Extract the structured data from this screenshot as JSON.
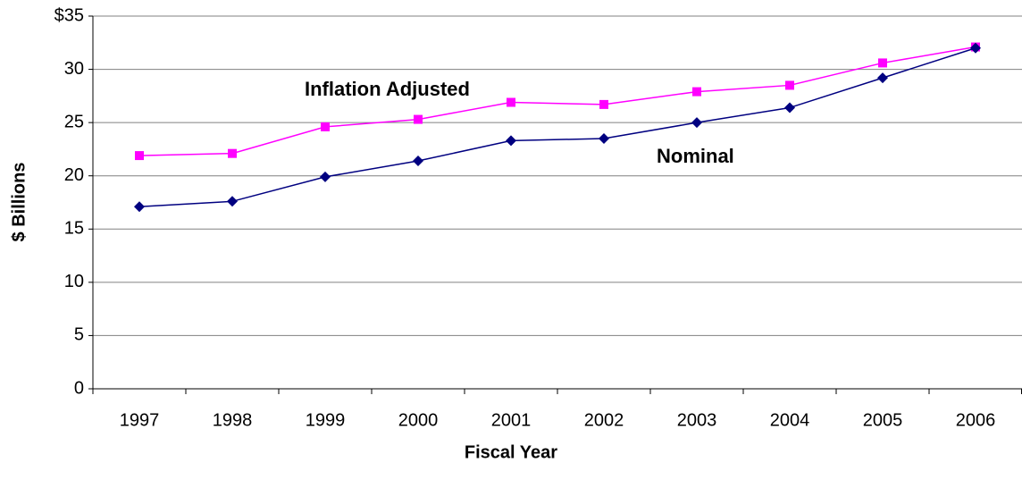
{
  "chart_data": {
    "type": "line",
    "categories": [
      "1997",
      "1998",
      "1999",
      "2000",
      "2001",
      "2002",
      "2003",
      "2004",
      "2005",
      "2006"
    ],
    "series": [
      {
        "name": "Inflation Adjusted",
        "color": "#ff00ff",
        "marker": "square",
        "values": [
          21.9,
          22.1,
          24.6,
          25.3,
          26.9,
          26.7,
          27.9,
          28.5,
          30.6,
          32.1
        ]
      },
      {
        "name": "Nominal",
        "color": "#000080",
        "marker": "diamond",
        "values": [
          17.1,
          17.6,
          19.9,
          21.4,
          23.3,
          23.5,
          25.0,
          26.4,
          29.2,
          32.0
        ]
      }
    ],
    "y_label": "$ Billions",
    "x_label": "Fiscal Year",
    "ylim": [
      0,
      35
    ],
    "yticks": [
      0,
      5,
      10,
      15,
      20,
      25,
      30,
      {
        "value": 35,
        "label": "$35"
      }
    ],
    "grid": true
  }
}
